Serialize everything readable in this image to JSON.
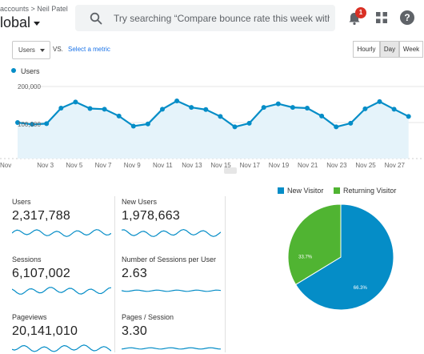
{
  "header": {
    "breadcrumb": "accounts > Neil Patel",
    "view": "lobal",
    "search_placeholder": "Try searching “Compare bounce rate this week with la...",
    "notification_count": "1",
    "help": "?"
  },
  "toolbar": {
    "metric": "Users",
    "vs": "VS.",
    "select_metric": "Select a metric",
    "hourly": "Hourly",
    "day": "Day",
    "week": "Week",
    "active": "Day"
  },
  "chart_data": {
    "type": "area",
    "legend": "Users",
    "color": "#058dc7",
    "y_ticks": [
      "200,000",
      "100,000"
    ],
    "ylim": [
      0,
      200000
    ],
    "x_tick_labels": [
      "Nov 3",
      "Nov 5",
      "Nov 7",
      "Nov 9",
      "Nov 11",
      "Nov 13",
      "Nov 15",
      "Nov 17",
      "Nov 19",
      "Nov 21",
      "Nov 23",
      "Nov 25",
      "Nov 27",
      "Nov"
    ],
    "y_values": [
      100000,
      95000,
      97000,
      140000,
      157000,
      139000,
      137000,
      118000,
      90000,
      96000,
      137000,
      160000,
      142000,
      136000,
      117000,
      88000,
      98000,
      142000,
      152000,
      142000,
      140000,
      118000,
      88000,
      98000,
      138000,
      158000,
      137000,
      117000
    ]
  },
  "scorecards": [
    {
      "label": "Users",
      "value": "2,317,788"
    },
    {
      "label": "New Users",
      "value": "1,978,663"
    },
    {
      "label": "Sessions",
      "value": "6,107,002"
    },
    {
      "label": "Number of Sessions per User",
      "value": "2.63"
    },
    {
      "label": "Pageviews",
      "value": "20,141,010"
    },
    {
      "label": "Pages / Session",
      "value": "3.30"
    }
  ],
  "pie": {
    "legend_new": "New Visitor",
    "legend_returning": "Returning Visitor",
    "new_color": "#058dc7",
    "returning_color": "#50b432",
    "new_label": "66.3%",
    "returning_label": "33.7%",
    "new_pct": 66.3,
    "returning_pct": 33.7
  }
}
